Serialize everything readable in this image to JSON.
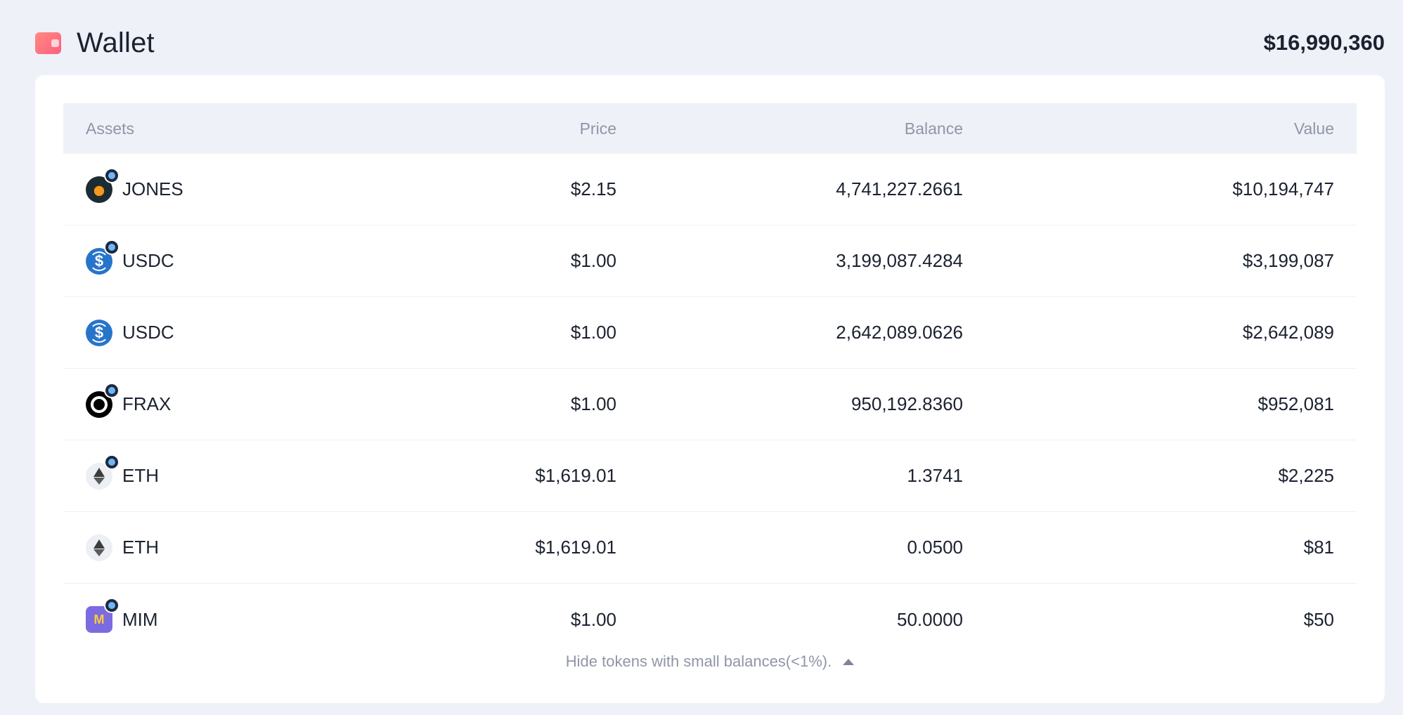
{
  "header": {
    "title": "Wallet",
    "total": "$16,990,360",
    "icon": "wallet-icon"
  },
  "table": {
    "columns": {
      "assets": "Assets",
      "price": "Price",
      "balance": "Balance",
      "value": "Value"
    },
    "rows": [
      {
        "symbol": "JONES",
        "icon": "jones-icon",
        "badge": true,
        "price": "$2.15",
        "balance": "4,741,227.2661",
        "value": "$10,194,747"
      },
      {
        "symbol": "USDC",
        "icon": "usdc-icon",
        "badge": true,
        "price": "$1.00",
        "balance": "3,199,087.4284",
        "value": "$3,199,087"
      },
      {
        "symbol": "USDC",
        "icon": "usdc-icon",
        "badge": false,
        "price": "$1.00",
        "balance": "2,642,089.0626",
        "value": "$2,642,089"
      },
      {
        "symbol": "FRAX",
        "icon": "frax-icon",
        "badge": true,
        "price": "$1.00",
        "balance": "950,192.8360",
        "value": "$952,081"
      },
      {
        "symbol": "ETH",
        "icon": "eth-icon",
        "badge": true,
        "price": "$1,619.01",
        "balance": "1.3741",
        "value": "$2,225"
      },
      {
        "symbol": "ETH",
        "icon": "eth-icon",
        "badge": false,
        "price": "$1,619.01",
        "balance": "0.0500",
        "value": "$81"
      },
      {
        "symbol": "MIM",
        "icon": "mim-icon",
        "badge": true,
        "price": "$1.00",
        "balance": "50.0000",
        "value": "$50"
      }
    ]
  },
  "footer": {
    "toggle_label": "Hide tokens with small balances(<1%).",
    "toggle_icon": "caret-up-icon"
  },
  "colors": {
    "background": "#eef1f8",
    "card": "#ffffff",
    "muted_text": "#8f96a6",
    "accent_wallet": "#fe5f7e"
  }
}
